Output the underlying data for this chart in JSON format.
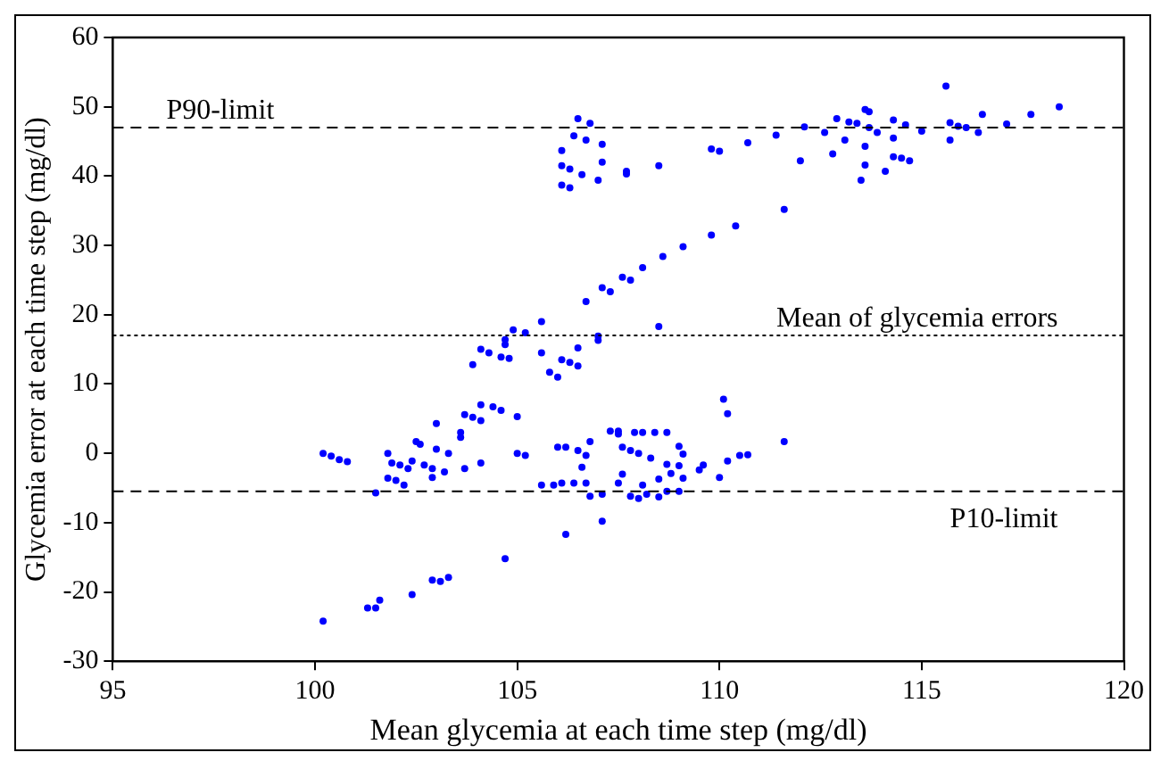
{
  "chart_data": {
    "type": "scatter",
    "xlabel": "Mean glycemia at each time step (mg/dl)",
    "ylabel": "Glycemia error at each time step (mg/dl)",
    "xlim": [
      95,
      120
    ],
    "xticks": [
      95,
      100,
      105,
      110,
      115,
      120
    ],
    "ylim": [
      -30,
      60
    ],
    "yticks": [
      -30,
      -20,
      -10,
      0,
      10,
      20,
      30,
      40,
      50,
      60
    ],
    "grid": false,
    "legend": false,
    "marker": "circle",
    "ref_lines": [
      {
        "axis": "y",
        "value": 47,
        "label": "P90-limit",
        "color": "#000000",
        "line_style": "dashed"
      },
      {
        "axis": "y",
        "value": 17,
        "label": "Mean of glycemia errors",
        "color": "#000000",
        "line_style": "dotted"
      },
      {
        "axis": "y",
        "value": -5.5,
        "label": "P10-limit",
        "color": "#000000",
        "line_style": "dashed"
      }
    ],
    "series": [
      {
        "color": "#0000ff",
        "x": [
          100.2,
          100.4,
          100.6,
          100.8,
          100.2,
          101.3,
          101.5,
          101.6,
          101.5,
          101.8,
          101.8,
          102.0,
          101.9,
          102.1,
          102.3,
          102.2,
          102.4,
          102.5,
          102.6,
          102.4,
          102.7,
          102.9,
          103.2,
          102.9,
          103.0,
          103.0,
          103.3,
          102.9,
          103.1,
          103.3,
          103.6,
          103.6,
          103.7,
          103.7,
          103.9,
          103.9,
          104.1,
          104.1,
          104.1,
          104.1,
          104.3,
          104.6,
          104.8,
          104.4,
          104.6,
          104.7,
          104.7,
          105.0,
          105.0,
          105.2,
          105.6,
          105.8,
          106.0,
          106.1,
          106.3,
          106.5,
          106.5,
          105.6,
          105.9,
          106.1,
          106.4,
          106.7,
          106.0,
          106.2,
          106.5,
          106.7,
          106.6,
          106.8,
          106.2,
          107.1,
          106.8,
          107.1,
          107.0,
          107.3,
          107.5,
          107.6,
          107.6,
          107.5,
          107.9,
          108.1,
          108.4,
          108.7,
          107.8,
          108.0,
          108.3,
          109.0,
          109.1,
          108.7,
          109.0,
          108.8,
          109.1,
          108.5,
          109.5,
          109.6,
          110.0,
          110.1,
          110.2,
          110.2,
          110.5,
          110.7,
          111.6,
          107.5,
          107.8,
          108.0,
          108.2,
          108.5,
          108.7,
          109.0,
          108.1,
          106.1,
          106.1,
          106.3,
          106.1,
          106.3,
          106.5,
          106.8,
          106.4,
          106.7,
          107.1,
          106.6,
          107.1,
          107.0,
          107.7,
          106.7,
          107.1,
          107.3,
          107.6,
          105.6,
          104.9,
          105.2,
          104.7,
          107.0,
          107.8,
          108.1,
          108.6,
          109.1,
          109.8,
          110.4,
          111.6,
          108.5,
          107.7,
          108.5,
          109.8,
          110.0,
          110.7,
          111.4,
          112.0,
          112.1,
          112.6,
          112.8,
          112.9,
          113.1,
          113.2,
          113.4,
          113.5,
          113.6,
          113.6,
          113.7,
          113.6,
          113.7,
          113.9,
          114.1,
          114.3,
          114.3,
          114.3,
          114.5,
          114.6,
          114.7,
          115.0,
          115.6,
          115.7,
          115.7,
          115.9,
          116.1,
          116.4,
          116.5,
          117.1,
          117.7,
          118.4
        ],
        "values": [
          0,
          -0.4,
          -0.9,
          -1.2,
          -24.2,
          -22.3,
          -22.3,
          -21.2,
          -5.7,
          0,
          -3.6,
          -3.9,
          -1.4,
          -1.7,
          -2.2,
          -4.6,
          -20.4,
          1.7,
          1.3,
          -1.1,
          -1.7,
          -2.2,
          -2.7,
          -3.5,
          4.3,
          0.6,
          0,
          -18.3,
          -18.5,
          -17.9,
          3.0,
          2.3,
          5.6,
          -2.2,
          5.2,
          12.8,
          4.7,
          7.0,
          -1.4,
          15.0,
          14.5,
          13.9,
          13.7,
          6.7,
          6.2,
          16.4,
          -15.2,
          5.3,
          0,
          -0.3,
          14.5,
          11.7,
          11.0,
          13.5,
          13.1,
          12.6,
          15.2,
          -4.6,
          -4.6,
          -4.3,
          -4.3,
          -4.3,
          0.9,
          0.9,
          0.4,
          -0.3,
          -2.0,
          1.7,
          -11.7,
          -9.8,
          -6.2,
          -5.9,
          16.9,
          3.2,
          2.8,
          0.9,
          -3.0,
          3.2,
          3.0,
          3.0,
          3.0,
          3.0,
          0.4,
          0,
          -0.7,
          1.0,
          -0.1,
          -1.6,
          -1.8,
          -2.9,
          -3.6,
          -3.7,
          -2.4,
          -1.7,
          -3.5,
          7.8,
          5.7,
          -1.1,
          -0.3,
          -0.2,
          1.7,
          -4.3,
          -6.2,
          -6.5,
          -5.9,
          -6.3,
          -5.5,
          -5.5,
          -4.6,
          43.7,
          41.5,
          41.0,
          38.7,
          38.3,
          48.3,
          47.6,
          45.8,
          45.2,
          44.6,
          40.2,
          42.0,
          39.4,
          40.7,
          21.9,
          23.9,
          23.3,
          25.4,
          19.0,
          17.8,
          17.4,
          15.7,
          16.3,
          25.0,
          26.8,
          28.4,
          29.8,
          31.5,
          32.8,
          35.2,
          18.3,
          40.3,
          41.5,
          43.9,
          43.6,
          44.8,
          45.9,
          42.2,
          47.1,
          46.3,
          43.2,
          48.3,
          45.2,
          47.8,
          47.6,
          39.4,
          44.3,
          49.6,
          49.3,
          41.6,
          47.0,
          46.3,
          40.7,
          42.8,
          45.5,
          48.1,
          42.6,
          47.4,
          42.2,
          46.5,
          53.0,
          47.7,
          45.2,
          47.2,
          47.0,
          46.3,
          48.9,
          47.5,
          48.9,
          50.0
        ]
      }
    ]
  }
}
